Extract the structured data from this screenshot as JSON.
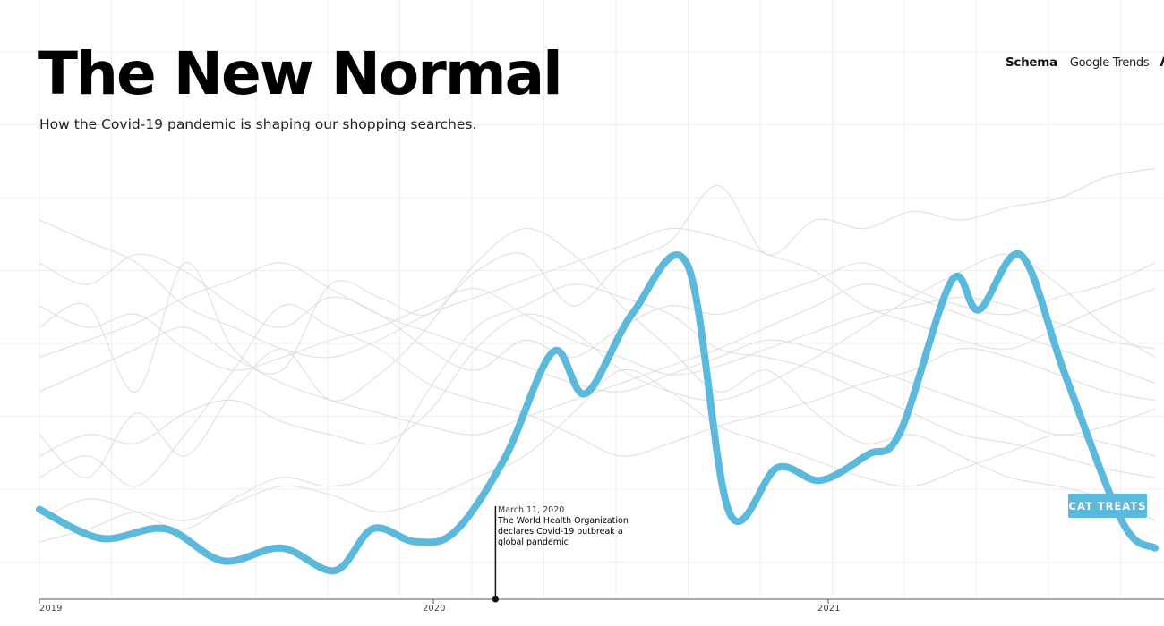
{
  "header": {
    "title": "The New Normal",
    "subtitle": "How the Covid-19 pandemic is shaping our shopping searches.",
    "brands": {
      "schema": "Schema",
      "google_trends": "Google Trends",
      "mark": "Λ"
    }
  },
  "annotation": {
    "date": "March 11, 2020",
    "text": "The World Health Organization declares Covid-19 outbreak a global pandemic",
    "x": "2020-03-11"
  },
  "colors": {
    "highlight": "#5ab9dd",
    "background_lines": "#d9d9d9",
    "grid": "#efefef",
    "axis": "#555555"
  },
  "chart_data": {
    "type": "line",
    "title": "The New Normal",
    "subtitle": "How the Covid-19 pandemic is shaping our shopping searches.",
    "xlabel": "",
    "ylabel": "",
    "x_ticks": [
      "2019",
      "2020",
      "2021"
    ],
    "xlim": [
      "2019-01-01",
      "2021-11-30"
    ],
    "ylim": [
      0,
      100
    ],
    "grid": true,
    "legend": "none",
    "highlight_series": "CAT TREATS",
    "series": [
      {
        "name": "CAT TREATS",
        "highlight": true,
        "x": [
          "2019-01-01",
          "2019-03-01",
          "2019-05-01",
          "2019-06-25",
          "2019-08-20",
          "2019-10-10",
          "2019-11-15",
          "2019-12-25",
          "2020-02-01",
          "2020-03-20",
          "2020-05-05",
          "2020-06-05",
          "2020-07-20",
          "2020-09-10",
          "2020-10-20",
          "2020-12-05",
          "2021-01-15",
          "2021-03-01",
          "2021-04-01",
          "2021-05-20",
          "2021-06-15",
          "2021-07-25",
          "2021-09-05",
          "2021-10-30",
          "2021-11-30"
        ],
        "values": [
          14,
          5,
          8,
          -2,
          2,
          -5,
          8,
          4,
          7,
          30,
          63,
          50,
          75,
          90,
          13,
          27,
          23,
          31,
          38,
          85,
          76,
          93,
          56,
          10,
          2
        ]
      },
      {
        "values": [
          55,
          60,
          40,
          70,
          50,
          45,
          65,
          62,
          58,
          68,
          72,
          60,
          70,
          75,
          88,
          72,
          80,
          78,
          82,
          80,
          83,
          85,
          90,
          92
        ]
      },
      {
        "values": [
          30,
          20,
          35,
          25,
          40,
          50,
          38,
          44,
          55,
          70,
          78,
          72,
          60,
          50,
          40,
          45,
          35,
          28,
          30,
          25,
          20,
          18,
          15,
          10
        ]
      },
      {
        "values": [
          70,
          65,
          72,
          68,
          60,
          55,
          62,
          58,
          50,
          45,
          52,
          48,
          55,
          60,
          58,
          62,
          66,
          70,
          64,
          60,
          58,
          62,
          65,
          70
        ]
      },
      {
        "values": [
          20,
          25,
          18,
          30,
          45,
          60,
          55,
          50,
          42,
          38,
          35,
          30,
          25,
          28,
          32,
          35,
          38,
          42,
          45,
          50,
          48,
          44,
          40,
          38
        ]
      },
      {
        "values": [
          10,
          15,
          12,
          8,
          15,
          20,
          18,
          22,
          40,
          55,
          60,
          65,
          62,
          58,
          50,
          48,
          45,
          40,
          35,
          30,
          28,
          25,
          22,
          20
        ]
      },
      {
        "values": [
          80,
          75,
          70,
          60,
          55,
          50,
          48,
          52,
          58,
          62,
          66,
          70,
          74,
          78,
          76,
          72,
          68,
          60,
          56,
          52,
          50,
          55,
          60,
          64
        ]
      },
      {
        "values": [
          40,
          45,
          50,
          55,
          48,
          42,
          38,
          35,
          32,
          30,
          34,
          38,
          42,
          46,
          50,
          55,
          60,
          65,
          62,
          58,
          54,
          50,
          46,
          42
        ]
      },
      {
        "values": [
          25,
          30,
          28,
          35,
          38,
          33,
          30,
          28,
          35,
          50,
          58,
          54,
          45,
          40,
          38,
          42,
          48,
          55,
          62,
          68,
          72,
          65,
          55,
          48
        ]
      },
      {
        "values": [
          60,
          55,
          58,
          50,
          45,
          48,
          52,
          55,
          60,
          64,
          58,
          52,
          48,
          44,
          46,
          50,
          54,
          58,
          60,
          62,
          60,
          56,
          52,
          50
        ]
      },
      {
        "values": [
          5,
          8,
          12,
          10,
          14,
          18,
          16,
          12,
          15,
          20,
          25,
          35,
          45,
          40,
          32,
          28,
          24,
          20,
          18,
          22,
          26,
          30,
          28,
          25
        ]
      },
      {
        "values": [
          48,
          52,
          56,
          62,
          66,
          70,
          64,
          58,
          54,
          50,
          46,
          42,
          40,
          44,
          48,
          52,
          50,
          46,
          42,
          38,
          34,
          30,
          32,
          36
        ]
      }
    ]
  }
}
